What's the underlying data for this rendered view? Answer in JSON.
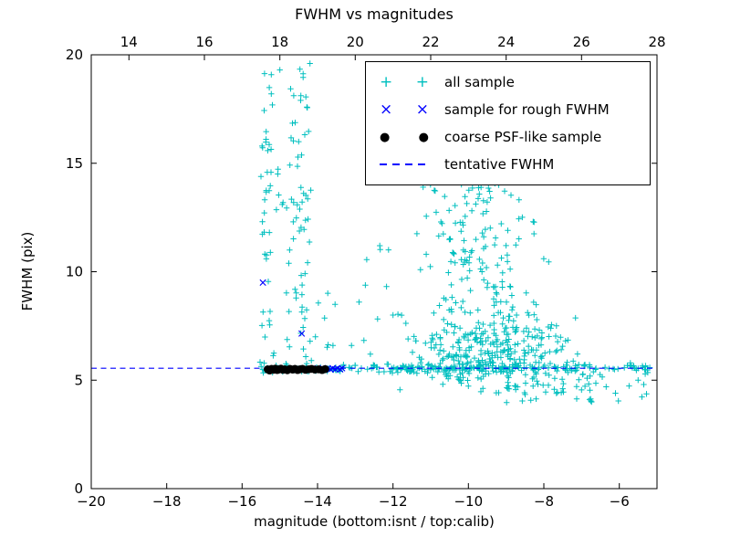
{
  "chart_data": {
    "type": "scatter",
    "title": "FWHM vs magnitudes",
    "xlabel": "magnitude (bottom:isnt / top:calib)",
    "ylabel": "FWHM (pix)",
    "xlim": [
      -20,
      -5
    ],
    "ylim": [
      0,
      20
    ],
    "top_xlim": [
      13,
      28
    ],
    "x_ticks_bottom": [
      -20,
      -18,
      -16,
      -14,
      -12,
      -10,
      -8,
      -6
    ],
    "x_ticks_top": [
      14,
      16,
      18,
      20,
      22,
      24,
      26,
      28
    ],
    "y_ticks": [
      0,
      5,
      10,
      15,
      20
    ],
    "grid": false,
    "seed": 7,
    "tentative_fwhm": 5.55,
    "legend": {
      "position": "upper right",
      "entries": [
        {
          "label": "all sample",
          "marker": "plus",
          "series": 0
        },
        {
          "label": "sample for rough FWHM",
          "marker": "x",
          "series": 1
        },
        {
          "label": "coarse PSF-like sample",
          "marker": "circle",
          "series": 2
        },
        {
          "label": "tentative FWHM",
          "marker": "dashed-line",
          "series": 3
        }
      ]
    },
    "series": [
      {
        "name": "all sample",
        "marker": "plus",
        "color": "#00bfbf",
        "points": [
          [
            -11.2,
            13.9
          ],
          [
            -12.35,
            11.2
          ],
          [
            -12.9,
            8.6
          ],
          [
            -12.0,
            8.0
          ],
          [
            -13.1,
            6.6
          ],
          [
            -11.6,
            6.9
          ],
          [
            -12.6,
            6.2
          ],
          [
            -5.35,
            4.8
          ],
          [
            -6.1,
            4.4
          ],
          [
            -7.0,
            4.55
          ],
          [
            -15.0,
            19.3
          ],
          [
            -14.2,
            19.6
          ],
          [
            -9.0,
            14.5
          ],
          [
            -10.3,
            14.2
          ]
        ],
        "clusters": [
          {
            "count": 185,
            "x": {
              "dist": "uniform",
              "min": -15.5,
              "max": -8.5
            },
            "y": {
              "dist": "normal",
              "mean": 5.55,
              "sigma": 0.1
            }
          },
          {
            "count": 65,
            "x": {
              "dist": "uniform",
              "min": -8.5,
              "max": -5.15
            },
            "y": {
              "dist": "normal",
              "mean": 5.55,
              "sigma": 0.12
            }
          },
          {
            "count": 40,
            "x": {
              "dist": "normal",
              "mean": -15.35,
              "sigma": 0.1,
              "clip": [
                -15.6,
                -15.05
              ]
            },
            "y": {
              "dist": "uniform",
              "min": 5.8,
              "max": 19.2
            }
          },
          {
            "count": 48,
            "x": {
              "dist": "normal",
              "mean": -14.4,
              "sigma": 0.15,
              "clip": [
                -14.78,
                -14.02
              ]
            },
            "y": {
              "dist": "uniform",
              "min": 5.8,
              "max": 19.6
            }
          },
          {
            "count": 14,
            "x": {
              "dist": "uniform",
              "min": -15.1,
              "max": -14.2
            },
            "y": {
              "dist": "uniform",
              "min": 10,
              "max": 15
            }
          },
          {
            "count": 18,
            "x": {
              "dist": "uniform",
              "min": -15.2,
              "max": -13.3
            },
            "y": {
              "dist": "uniform",
              "min": 5.8,
              "max": 9.5
            }
          },
          {
            "count": 10,
            "x": {
              "dist": "uniform",
              "min": -13.4,
              "max": -11.2
            },
            "y": {
              "dist": "uniform",
              "min": 5.8,
              "max": 11.5
            }
          },
          {
            "count": 330,
            "x": {
              "dist": "normal",
              "mean": -9.3,
              "sigma": 1.0,
              "clip": [
                -11.9,
                -6.6
              ]
            },
            "y": {
              "dist": "normal",
              "mean": 6.3,
              "sigma": 0.95,
              "clip": [
                4.3,
                9.8
              ]
            }
          },
          {
            "count": 130,
            "x": {
              "dist": "normal",
              "mean": -9.7,
              "sigma": 0.85,
              "clip": [
                -11.8,
                -7.4
              ]
            },
            "y": {
              "dist": "uniform",
              "min": 8.0,
              "max": 14.6
            }
          },
          {
            "count": 40,
            "x": {
              "dist": "uniform",
              "min": -9.0,
              "max": -5.2
            },
            "y": {
              "dist": "uniform",
              "min": 3.95,
              "max": 5.35
            }
          }
        ]
      },
      {
        "name": "sample for rough FWHM",
        "marker": "x",
        "color": "#0000ff",
        "points": [
          [
            -15.45,
            9.5
          ],
          [
            -14.42,
            7.15
          ],
          [
            -14.08,
            5.5
          ],
          [
            -14.0,
            5.55
          ],
          [
            -13.93,
            5.5
          ],
          [
            -13.86,
            5.55
          ],
          [
            -13.8,
            5.5
          ],
          [
            -13.73,
            5.55
          ],
          [
            -13.66,
            5.5
          ],
          [
            -13.6,
            5.55
          ],
          [
            -13.53,
            5.5
          ],
          [
            -13.47,
            5.55
          ],
          [
            -13.4,
            5.5
          ],
          [
            -13.35,
            5.55
          ]
        ]
      },
      {
        "name": "coarse PSF-like sample",
        "marker": "circle",
        "color": "#000000",
        "points": [
          [
            -15.32,
            5.5
          ],
          [
            -15.27,
            5.45
          ],
          [
            -15.22,
            5.52
          ],
          [
            -15.17,
            5.48
          ],
          [
            -15.12,
            5.53
          ],
          [
            -15.07,
            5.47
          ],
          [
            -15.02,
            5.5
          ],
          [
            -14.97,
            5.53
          ],
          [
            -14.92,
            5.48
          ],
          [
            -14.87,
            5.5
          ],
          [
            -14.8,
            5.46
          ],
          [
            -14.73,
            5.52
          ],
          [
            -14.66,
            5.49
          ],
          [
            -14.6,
            5.52
          ],
          [
            -14.53,
            5.47
          ],
          [
            -14.47,
            5.5
          ],
          [
            -14.4,
            5.52
          ],
          [
            -14.32,
            5.48
          ],
          [
            -14.24,
            5.5
          ],
          [
            -14.16,
            5.52
          ],
          [
            -14.07,
            5.49
          ],
          [
            -13.97,
            5.5
          ],
          [
            -13.88,
            5.47
          ],
          [
            -13.8,
            5.51
          ]
        ]
      },
      {
        "name": "tentative FWHM",
        "type": "hline",
        "style": "dashed",
        "color": "#0000ff",
        "y": 5.55
      }
    ]
  }
}
